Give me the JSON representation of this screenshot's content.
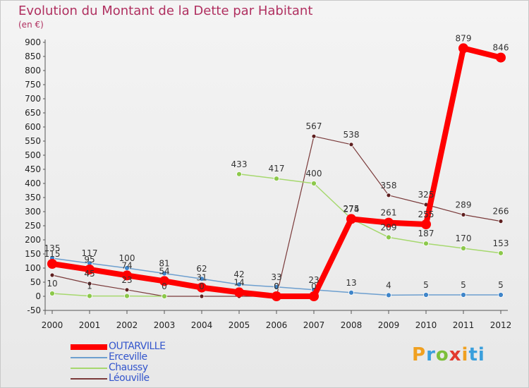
{
  "header": {
    "title": "Evolution du Montant de la Dette par Habitant",
    "unit": "(en €)"
  },
  "logo": {
    "text": "Proxiti",
    "letters": [
      "P",
      "r",
      "o",
      "x",
      "i",
      "ti"
    ]
  },
  "chart_data": {
    "type": "line",
    "title": "Evolution du Montant de la Dette par Habitant",
    "ylabel": "(en €)",
    "xlabel": "",
    "x": [
      "2000",
      "2001",
      "2002",
      "2003",
      "2004",
      "2005",
      "2006",
      "2007",
      "2008",
      "2009",
      "2010",
      "2011",
      "2012"
    ],
    "ylim": [
      -50,
      900
    ],
    "yticks": [
      -50,
      0,
      50,
      100,
      150,
      200,
      250,
      300,
      350,
      400,
      450,
      500,
      550,
      600,
      650,
      700,
      750,
      800,
      850,
      900
    ],
    "grid": false,
    "legend_position": "bottom-left",
    "series": [
      {
        "name": "OUTARVILLE",
        "color": "#ff0000",
        "width": 8,
        "marker": 7,
        "values": [
          115,
          95,
          74,
          54,
          31,
          14,
          0,
          0,
          274,
          261,
          255,
          879,
          846
        ],
        "labels": [
          "115",
          "95",
          "74",
          "54",
          "31",
          "14",
          "0",
          "0",
          "274",
          "261",
          "255",
          "879",
          "846"
        ]
      },
      {
        "name": "Erceville",
        "color": "#6d9fcf",
        "width": 1.5,
        "marker": 3.5,
        "markerColor": "#3f85c9",
        "values": [
          135,
          117,
          100,
          81,
          62,
          42,
          33,
          23,
          13,
          4,
          5,
          5,
          5
        ],
        "labels": [
          "135",
          "117",
          "100",
          "81",
          "62",
          "42",
          "33",
          "23",
          "13",
          "4",
          "5",
          "5",
          "5"
        ]
      },
      {
        "name": "Chaussy",
        "color": "#a6d86e",
        "width": 1.5,
        "marker": 3.5,
        "markerColor": "#8cc84b",
        "values": [
          10,
          1,
          1,
          0,
          null,
          433,
          417,
          400,
          275,
          209,
          187,
          170,
          153
        ],
        "labels": [
          "10",
          "1",
          "",
          "",
          "",
          "433",
          "417",
          "400",
          "275",
          "209",
          "187",
          "170",
          "153"
        ]
      },
      {
        "name": "Léouville",
        "color": "#7a3a3a",
        "width": 1.2,
        "marker": 3,
        "markerColor": "#5e1f1f",
        "values": [
          75,
          45,
          23,
          0,
          0,
          0,
          0,
          567,
          538,
          358,
          325,
          289,
          266
        ],
        "labels": [
          "",
          "45",
          "23",
          "0",
          "0",
          "",
          "0",
          "567",
          "538",
          "358",
          "325",
          "289",
          "266"
        ]
      }
    ]
  }
}
